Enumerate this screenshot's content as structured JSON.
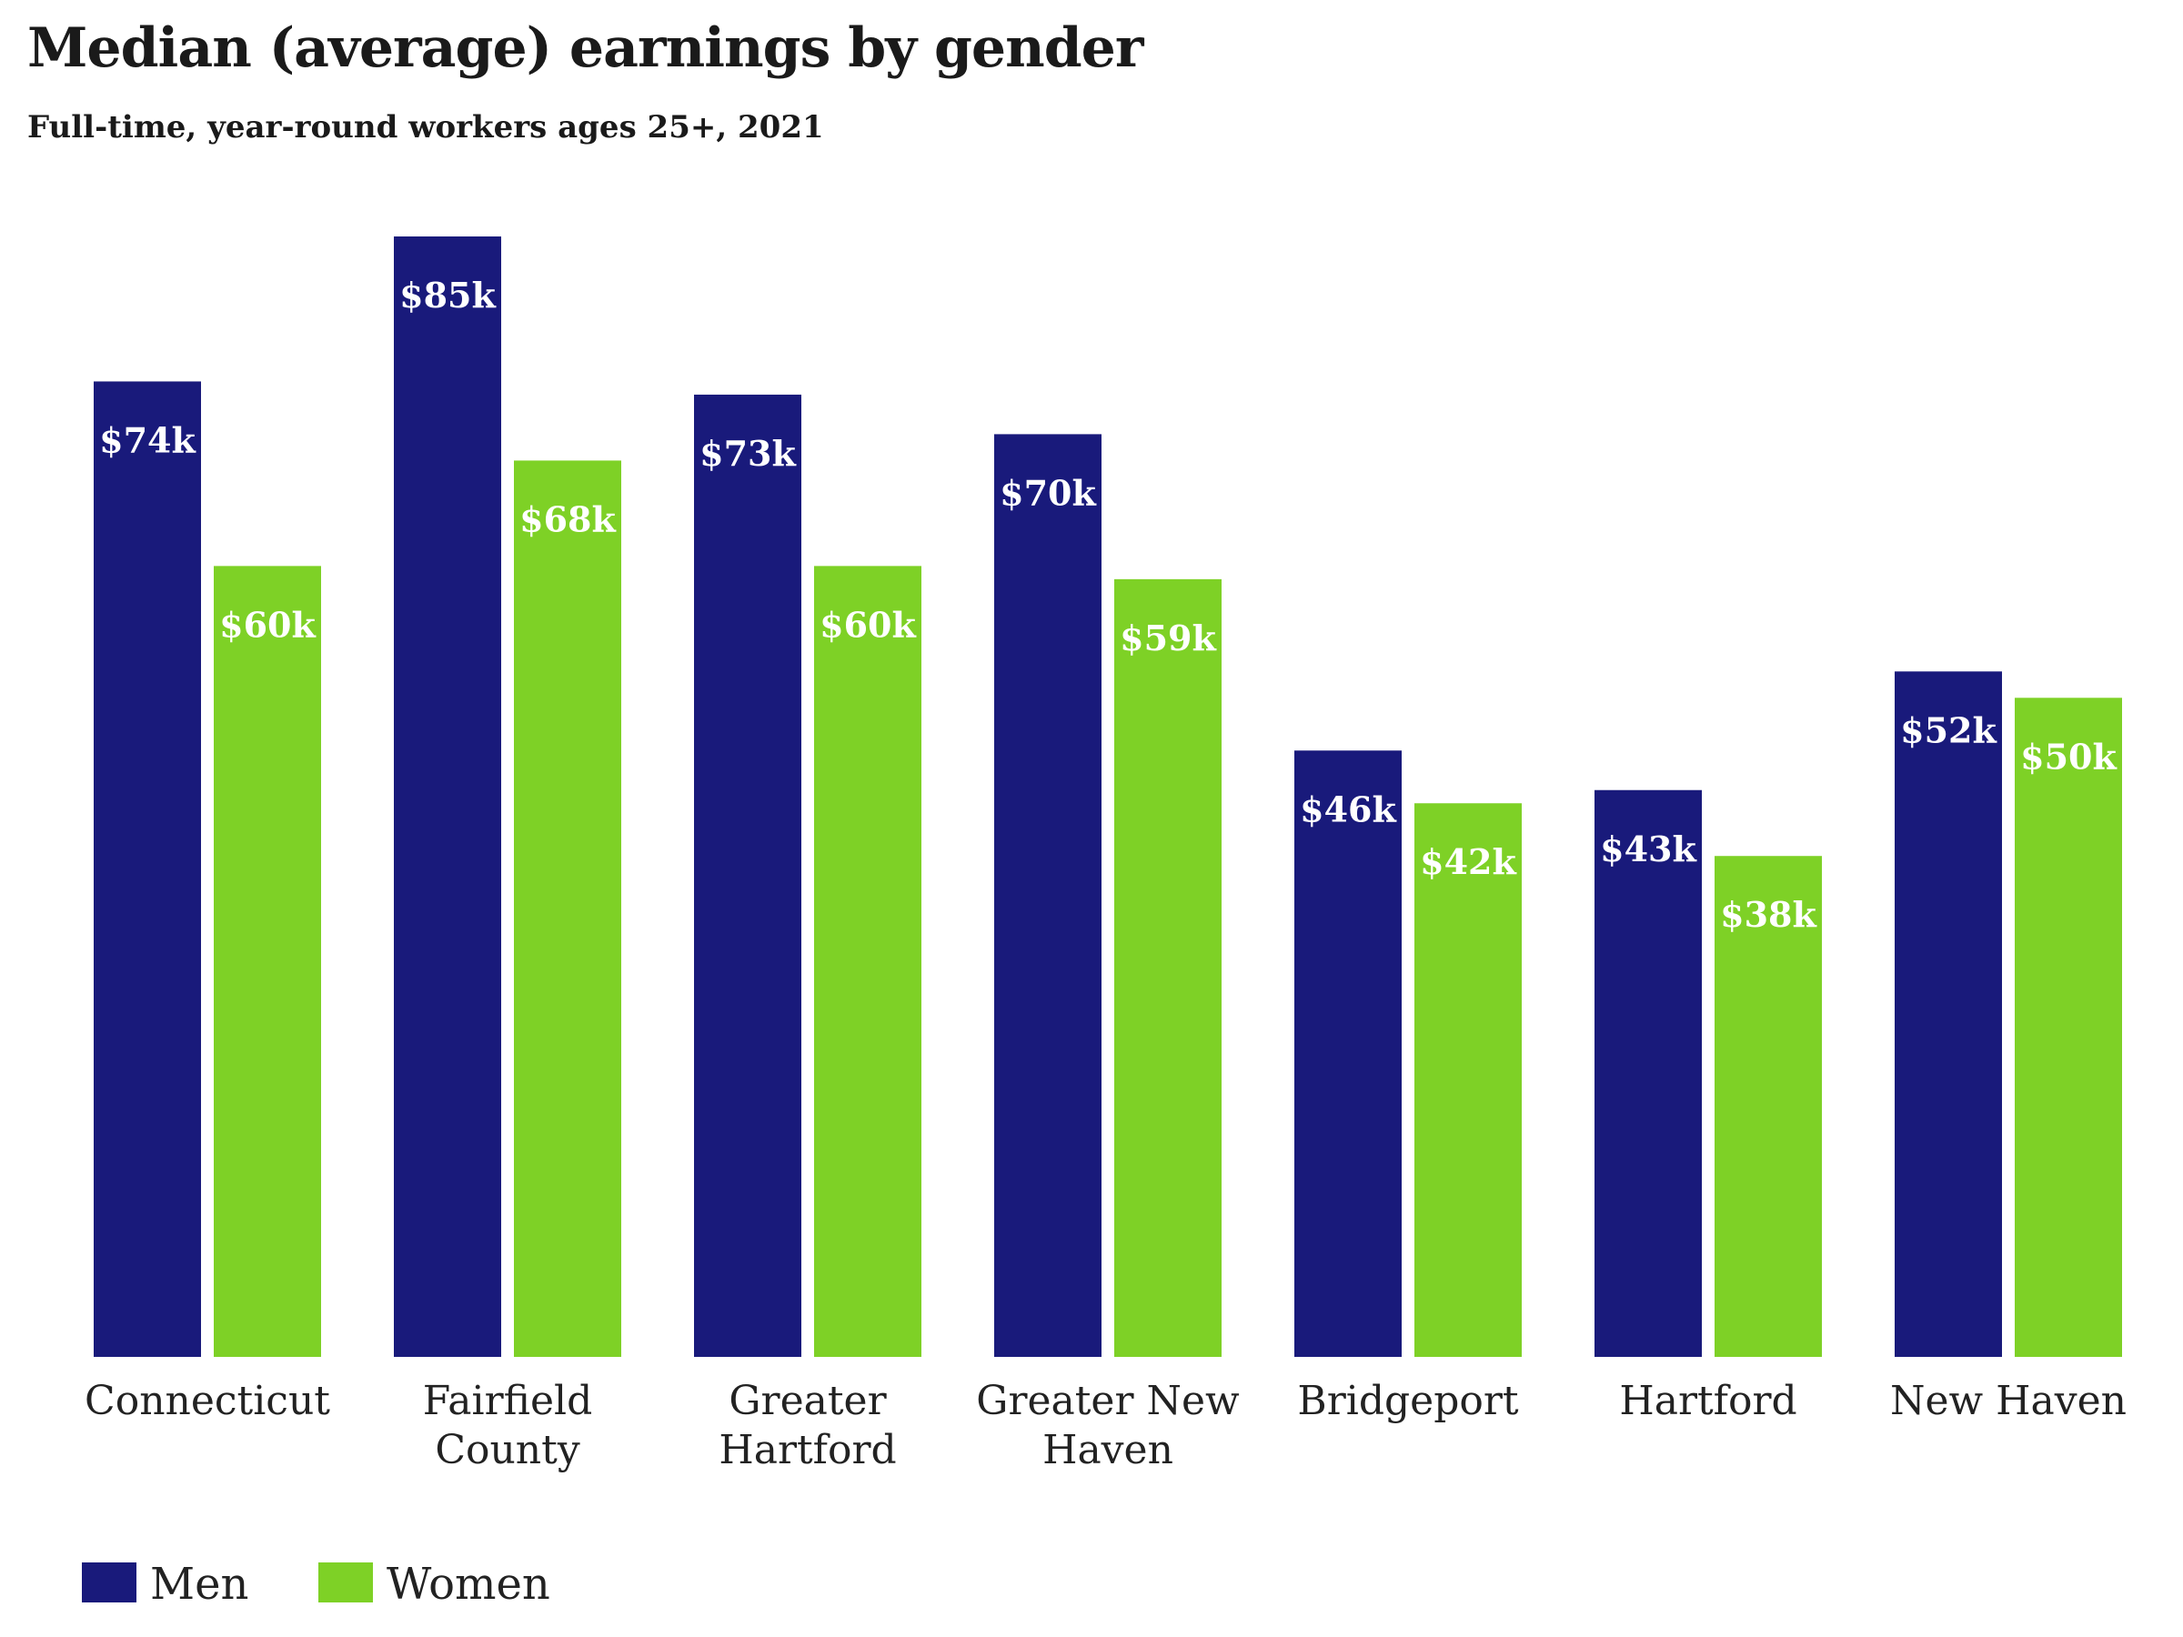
{
  "title": "Median (average) earnings by gender",
  "subtitle": "Full-time, year-round workers ages 25+, 2021",
  "chart_data": {
    "type": "bar",
    "categories": [
      [
        "Connecticut"
      ],
      [
        "Fairfield",
        "County"
      ],
      [
        "Greater",
        "Hartford"
      ],
      [
        "Greater New",
        "Haven"
      ],
      [
        "Bridgeport"
      ],
      [
        "Hartford"
      ],
      [
        "New Haven"
      ]
    ],
    "series": [
      {
        "name": "Men",
        "color": "#191a7b",
        "values": [
          74,
          85,
          73,
          70,
          46,
          43,
          52
        ],
        "labels": [
          "$74k",
          "$85k",
          "$73k",
          "$70k",
          "$46k",
          "$43k",
          "$52k"
        ]
      },
      {
        "name": "Women",
        "color": "#7ed126",
        "values": [
          60,
          68,
          60,
          59,
          42,
          38,
          50
        ],
        "labels": [
          "$60k",
          "$68k",
          "$60k",
          "$59k",
          "$42k",
          "$38k",
          "$50k"
        ]
      }
    ],
    "ylim": [
      0,
      85
    ],
    "grid": false,
    "legend": "bottom-left"
  }
}
